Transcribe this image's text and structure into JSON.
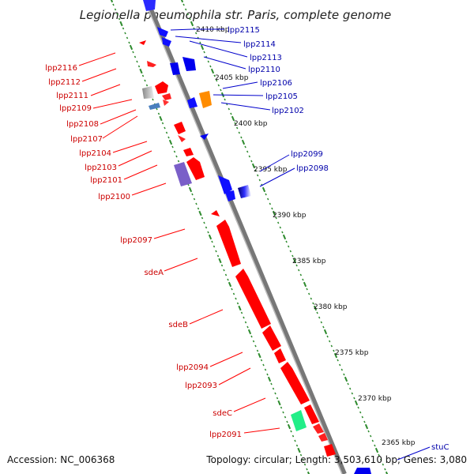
{
  "title": "Legionella pneumophila str. Paris, complete genome",
  "footer": {
    "accession": "Accession: NC_006368",
    "topology": "Topology: circular; Length: 3,503,610 bp; Genes: 3,080"
  },
  "colors": {
    "reverse_strand": "#ff0000",
    "forward_strand": "#0000ff",
    "label_reverse": "#cc0000",
    "label_forward": "#0000aa",
    "tick": "#2e8b2e",
    "backbone": "#777777"
  },
  "kbp_marks": [
    "2410 kbp",
    "2405 kbp",
    "2400 kbp",
    "2395 kbp",
    "2390 kbp",
    "2385 kbp",
    "2380 kbp",
    "2375 kbp",
    "2370 kbp",
    "2365 kbp"
  ],
  "reverse_labels": [
    "lpp2116",
    "lpp2112",
    "lpp2111",
    "lpp2109",
    "lpp2108",
    "lpp2107",
    "lpp2104",
    "lpp2103",
    "lpp2101",
    "lpp2100",
    "lpp2097",
    "sdeA",
    "sdeB",
    "lpp2094",
    "lpp2093",
    "sdeC",
    "lpp2091"
  ],
  "forward_labels": [
    "lpp2115",
    "lpp2114",
    "lpp2113",
    "lpp2110",
    "lpp2106",
    "lpp2105",
    "lpp2102",
    "lpp2099",
    "lpp2098",
    "stuC"
  ]
}
